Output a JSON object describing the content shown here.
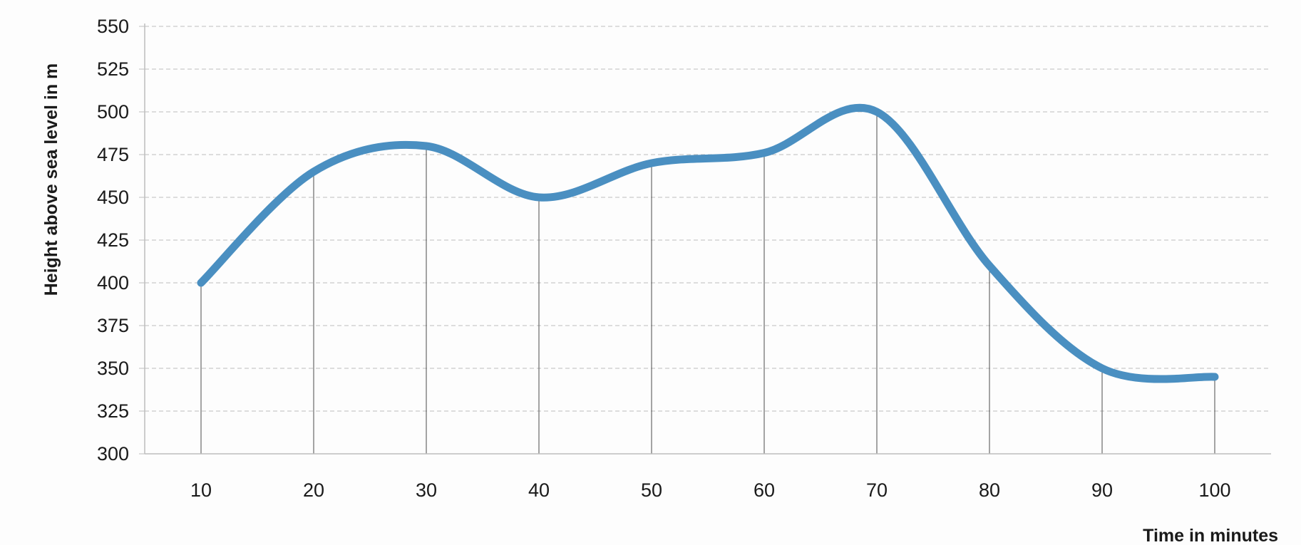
{
  "chart_data": {
    "type": "line",
    "title": "",
    "xlabel": "Time in minutes",
    "ylabel": "Height above sea level in m",
    "x": [
      10,
      20,
      30,
      40,
      50,
      60,
      70,
      80,
      90,
      100
    ],
    "xlim": [
      5,
      105
    ],
    "ylim": [
      300,
      550
    ],
    "yticks": [
      300,
      325,
      350,
      375,
      400,
      425,
      450,
      475,
      500,
      525,
      550
    ],
    "grid": "horizontal",
    "legend": "none",
    "series": [
      {
        "values": [
          400,
          465,
          480,
          450,
          470,
          476,
          500,
          410,
          350,
          345
        ],
        "color": "#4a8fc1"
      }
    ]
  }
}
